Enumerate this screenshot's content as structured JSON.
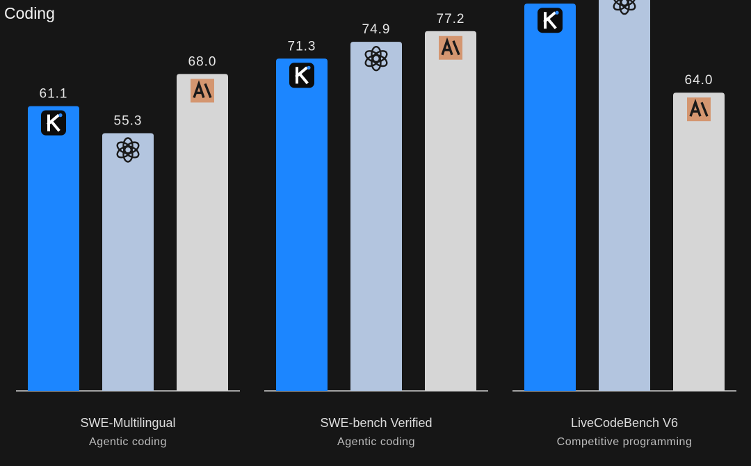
{
  "page": {
    "title": "Coding"
  },
  "colors": {
    "background": "#161616",
    "kimi": "#1c86ff",
    "openai": "#b3c5df",
    "anthropic": "#d6d6d6",
    "baseline": "#d0d0d0",
    "anthropic_badge": "#d49670"
  },
  "chart_data": {
    "type": "bar",
    "title": "Coding",
    "xlabel": "",
    "ylabel": "",
    "ylim": [
      0,
      100
    ],
    "grid": false,
    "legend": "none",
    "categories": [
      "SWE-Multilingual",
      "SWE-bench Verified",
      "LiveCodeBench V6"
    ],
    "category_subtitles": [
      "Agentic coding",
      "Agentic coding",
      "Competitive programming"
    ],
    "series": [
      {
        "icon": "kimi-logo-icon",
        "color": "#1c86ff",
        "values": [
          61.1,
          71.3,
          83.1
        ]
      },
      {
        "icon": "openai-logo-icon",
        "color": "#b3c5df",
        "values": [
          55.3,
          74.9,
          87.0
        ]
      },
      {
        "icon": "anthropic-logo-icon",
        "color": "#d6d6d6",
        "values": [
          68.0,
          77.2,
          64.0
        ]
      }
    ]
  }
}
